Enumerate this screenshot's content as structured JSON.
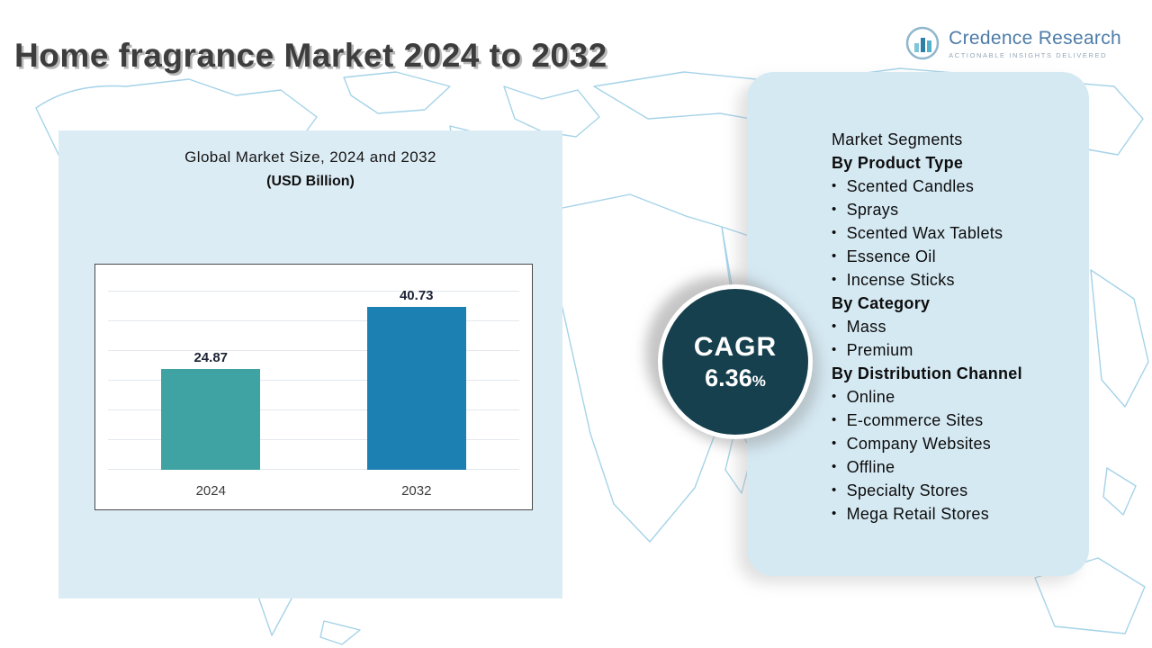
{
  "title": "Home fragrance Market 2024 to 2032",
  "logo": {
    "name": "Credence Research",
    "tagline": "Actionable Insights Delivered"
  },
  "chart_data": {
    "type": "bar",
    "title": "Global Market Size, 2024 and 2032",
    "subtitle": "(USD Billion)",
    "categories": [
      "2024",
      "2032"
    ],
    "values": [
      24.87,
      40.73
    ],
    "ylim": [
      0,
      45
    ],
    "grid": true,
    "bar_colors": [
      "#3fa3a3",
      "#1d80b2"
    ]
  },
  "cagr": {
    "label": "CAGR",
    "value": "6.36",
    "percent": "%"
  },
  "segments": {
    "heading": "Market Segments",
    "groups": [
      {
        "label": "By Product Type",
        "items": [
          "Scented Candles",
          "Sprays",
          "Scented Wax Tablets",
          "Essence Oil",
          "Incense Sticks"
        ]
      },
      {
        "label": "By Category",
        "items": [
          "Mass",
          "Premium"
        ]
      },
      {
        "label": "By Distribution Channel",
        "items": [
          "Online",
          "E-commerce Sites",
          "Company Websites",
          "Offline",
          "Specialty Stores",
          "Mega Retail Stores"
        ]
      }
    ]
  },
  "colors": {
    "bar_2024": "#3fa3a3",
    "bar_2032": "#1d80b2",
    "cagr_circle": "#16404e",
    "panel_background": "#dcecf5",
    "map_lines": "#a5d3e8"
  }
}
